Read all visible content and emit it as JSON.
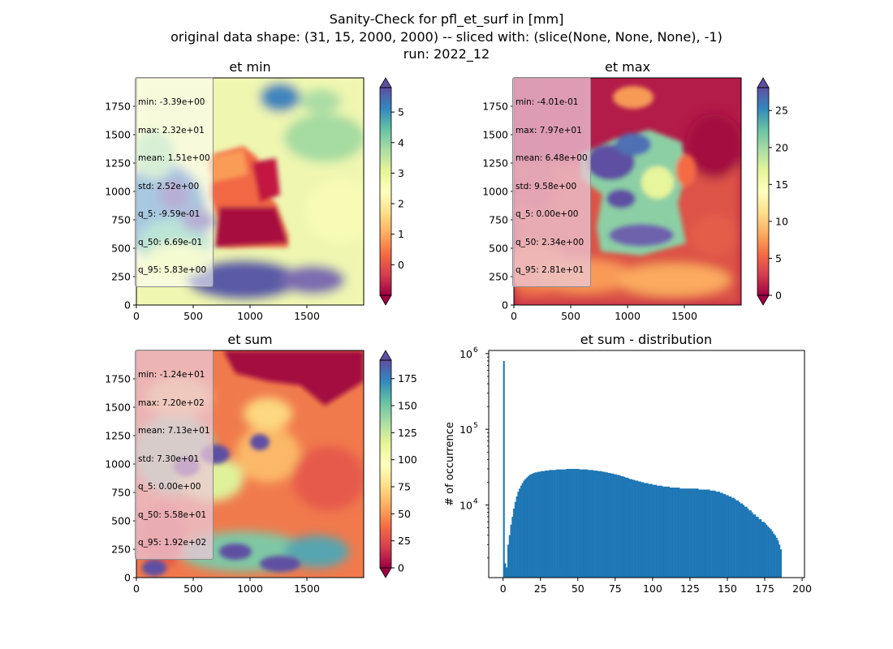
{
  "figure": {
    "suptitle_lines": [
      "Sanity-Check for pfl_et_surf in [mm]",
      "original data shape: (31, 15, 2000, 2000) -- sliced with: (slice(None, None, None), -1)",
      "run: 2022_12"
    ]
  },
  "panels": {
    "et_min": {
      "title": "et min",
      "x_ticks": [
        "0",
        "500",
        "1000",
        "1500"
      ],
      "y_ticks": [
        "0",
        "250",
        "500",
        "750",
        "1000",
        "1250",
        "1500",
        "1750"
      ],
      "colorbar_ticks": [
        "0",
        "1",
        "2",
        "3",
        "4",
        "5"
      ],
      "colorbar_range": [
        -1,
        5.8
      ],
      "stats": [
        "min: -3.39e+00",
        "max: 2.32e+01",
        "mean: 1.51e+00",
        "std: 2.52e+00",
        "q_5: -9.59e-01",
        "q_50: 6.69e-01",
        "q_95: 5.83e+00"
      ]
    },
    "et_max": {
      "title": "et max",
      "x_ticks": [
        "0",
        "500",
        "1000",
        "1500"
      ],
      "y_ticks": [
        "0",
        "250",
        "500",
        "750",
        "1000",
        "1250",
        "1500",
        "1750"
      ],
      "colorbar_ticks": [
        "0",
        "5",
        "10",
        "15",
        "20",
        "25"
      ],
      "colorbar_range": [
        0,
        28.1
      ],
      "stats": [
        "min: -4.01e-01",
        "max: 7.97e+01",
        "mean: 6.48e+00",
        "std: 9.58e+00",
        "q_5: 0.00e+00",
        "q_50: 2.34e+00",
        "q_95: 2.81e+01"
      ]
    },
    "et_sum": {
      "title": "et sum",
      "x_ticks": [
        "0",
        "500",
        "1000",
        "1500"
      ],
      "y_ticks": [
        "0",
        "250",
        "500",
        "750",
        "1000",
        "1250",
        "1500",
        "1750"
      ],
      "colorbar_ticks": [
        "0",
        "25",
        "50",
        "75",
        "100",
        "125",
        "150",
        "175"
      ],
      "colorbar_range": [
        0,
        192
      ],
      "stats": [
        "min: -1.24e+01",
        "max: 7.20e+02",
        "mean: 7.13e+01",
        "std: 7.30e+01",
        "q_5: 0.00e+00",
        "q_50: 5.58e+01",
        "q_95: 1.92e+02"
      ]
    }
  },
  "colors": {
    "spectral": [
      "#9e0142",
      "#d53e4f",
      "#f46d43",
      "#fdae61",
      "#fee08b",
      "#ffffbf",
      "#e6f598",
      "#abdda4",
      "#66c2a5",
      "#3288bd",
      "#5e4fa2"
    ],
    "hist_bar": "#1f77b4"
  },
  "chart_data": [
    {
      "type": "bar",
      "title": "et sum - distribution",
      "xlabel": "",
      "ylabel": "# of occurrence",
      "y_scale": "log",
      "ylim": [
        1100,
        1100000
      ],
      "xlim": [
        -9.6,
        201.6
      ],
      "x_ticks": [
        "0",
        "25",
        "50",
        "75",
        "100",
        "125",
        "150",
        "175",
        "200"
      ],
      "y_ticks": [
        {
          "value": 10000,
          "base": "10",
          "exp": "4"
        },
        {
          "value": 100000,
          "base": "10",
          "exp": "5"
        },
        {
          "value": 1000000,
          "base": "10",
          "exp": "6"
        }
      ],
      "bin_start": 0,
      "bin_width": 0.96,
      "values": [
        800000,
        1700,
        1500,
        3000,
        4000,
        5500,
        7000,
        9000,
        11000,
        13000,
        15000,
        16500,
        18000,
        19500,
        21000,
        22000,
        23000,
        24000,
        25000,
        25500,
        26000,
        26500,
        27000,
        27000,
        27500,
        27500,
        28000,
        28000,
        28000,
        28500,
        28500,
        28500,
        29000,
        29000,
        29000,
        29000,
        29000,
        29500,
        29500,
        29500,
        29500,
        29500,
        29500,
        29500,
        30000,
        30000,
        30000,
        30000,
        30000,
        30000,
        30000,
        30000,
        30000,
        29500,
        29500,
        29500,
        29500,
        29500,
        29500,
        29000,
        29000,
        29000,
        29000,
        28500,
        28500,
        28500,
        28000,
        28000,
        28000,
        27500,
        27500,
        27000,
        27000,
        26500,
        26500,
        26000,
        26000,
        25500,
        25500,
        25000,
        25000,
        24500,
        24000,
        24000,
        23500,
        23000,
        23000,
        22500,
        22000,
        22000,
        21500,
        21500,
        21000,
        21000,
        20500,
        20500,
        20000,
        20000,
        19500,
        19500,
        19500,
        19000,
        19000,
        19000,
        18500,
        18500,
        18500,
        18000,
        18000,
        18000,
        18000,
        17500,
        17500,
        17500,
        17500,
        17500,
        17000,
        17000,
        17000,
        17000,
        17000,
        17000,
        17000,
        16500,
        16500,
        16500,
        16500,
        16500,
        16500,
        16500,
        16500,
        16500,
        16500,
        16500,
        16500,
        16500,
        16000,
        16000,
        16000,
        16000,
        16000,
        16000,
        16000,
        16000,
        15500,
        15500,
        15500,
        15500,
        15000,
        15000,
        15000,
        14500,
        14500,
        14000,
        14000,
        13500,
        13500,
        13000,
        13000,
        12500,
        12500,
        12000,
        11500,
        11500,
        11000,
        10500,
        10500,
        10000,
        9500,
        9500,
        9000,
        8500,
        8500,
        8000,
        7500,
        7500,
        7000,
        7000,
        6500,
        6500,
        6000,
        6000,
        5800,
        5500,
        5200,
        5000,
        4800,
        4500,
        4200,
        4000,
        3700,
        3400,
        3000,
        2600
      ]
    }
  ]
}
